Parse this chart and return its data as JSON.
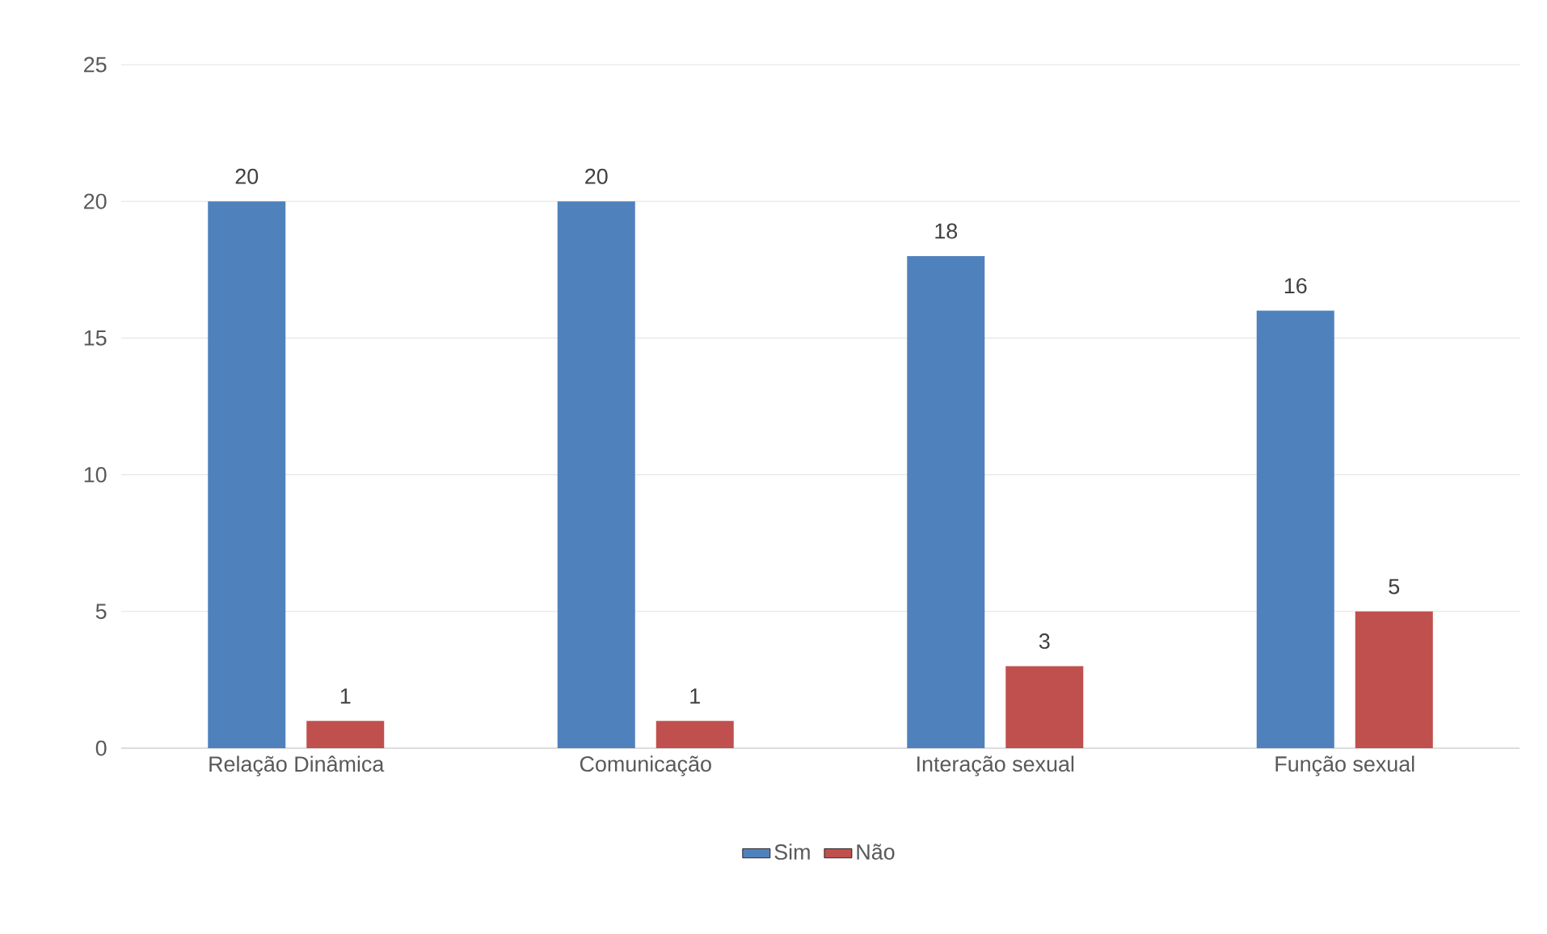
{
  "chart_data": {
    "type": "bar",
    "categories": [
      "Relação Dinâmica",
      "Comunicação",
      "Interação sexual",
      "Função sexual"
    ],
    "series": [
      {
        "name": "Sim",
        "color": "#4f81bd",
        "values": [
          20,
          20,
          18,
          16
        ]
      },
      {
        "name": "Não",
        "color": "#c0504d",
        "values": [
          1,
          1,
          3,
          5
        ]
      }
    ],
    "ylim": [
      0,
      25
    ],
    "yticks": [
      0,
      5,
      10,
      15,
      20,
      25
    ],
    "grid": "y",
    "legend": "bottom",
    "data_labels": true
  }
}
